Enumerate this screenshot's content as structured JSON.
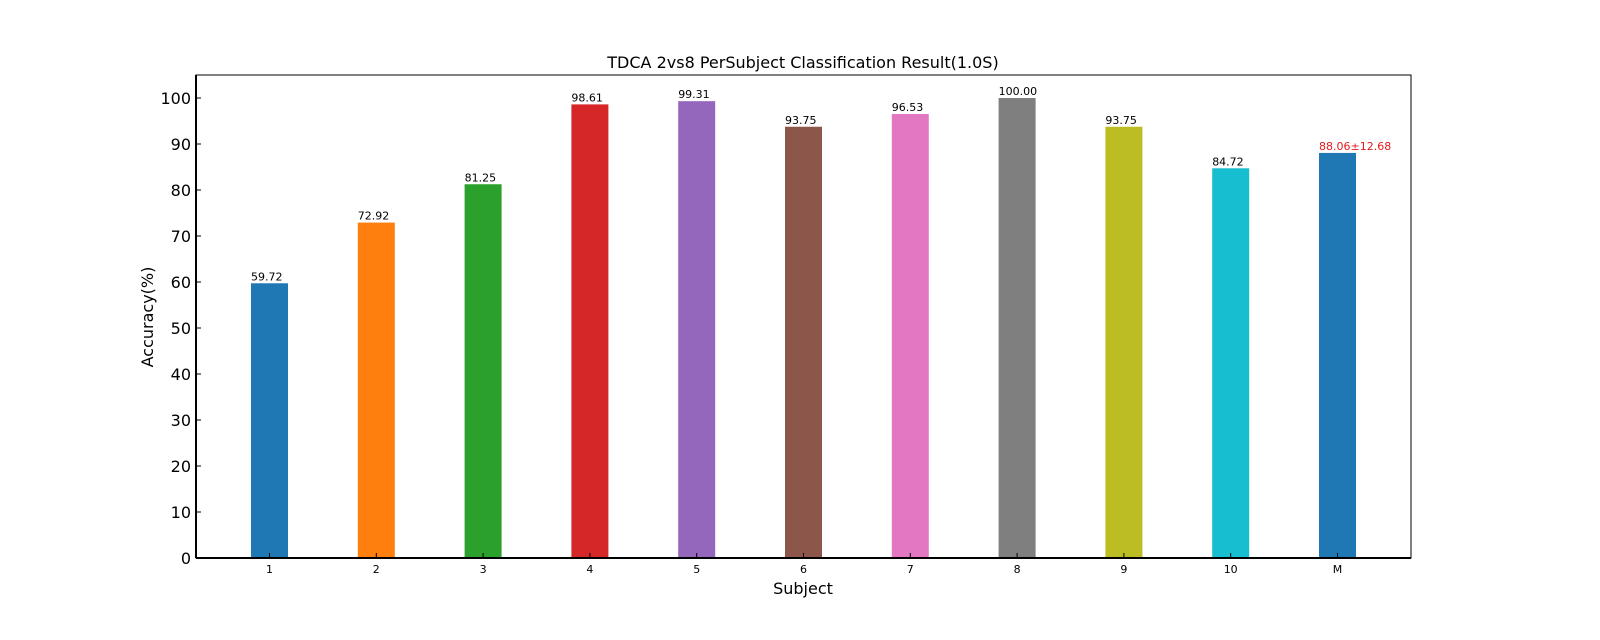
{
  "chart_data": {
    "type": "bar",
    "title": "TDCA 2vs8 PerSubject Classification Result(1.0S)",
    "xlabel": "Subject",
    "ylabel": "Accuracy(%)",
    "ylim": [
      0,
      105
    ],
    "yticks": [
      0,
      10,
      20,
      30,
      40,
      50,
      60,
      70,
      80,
      90,
      100
    ],
    "grid": false,
    "categories": [
      "1",
      "2",
      "3",
      "4",
      "5",
      "6",
      "7",
      "8",
      "9",
      "10",
      "M"
    ],
    "values": [
      59.72,
      72.92,
      81.25,
      98.61,
      99.31,
      93.75,
      96.53,
      100.0,
      93.75,
      84.72,
      88.06
    ],
    "labels": [
      "59.72",
      "72.92",
      "81.25",
      "98.61",
      "99.31",
      "93.75",
      "96.53",
      "100.00",
      "93.75",
      "84.72",
      "88.06±12.68"
    ],
    "colors": [
      "#1f77b4",
      "#ff7f0e",
      "#2ca02c",
      "#d62728",
      "#9467bd",
      "#8c564b",
      "#e377c2",
      "#7f7f7f",
      "#bcbd22",
      "#17becf",
      "#1f77b4"
    ],
    "label_colors": [
      "#000000",
      "#000000",
      "#000000",
      "#000000",
      "#000000",
      "#000000",
      "#000000",
      "#000000",
      "#000000",
      "#000000",
      "#e41a1c"
    ]
  }
}
